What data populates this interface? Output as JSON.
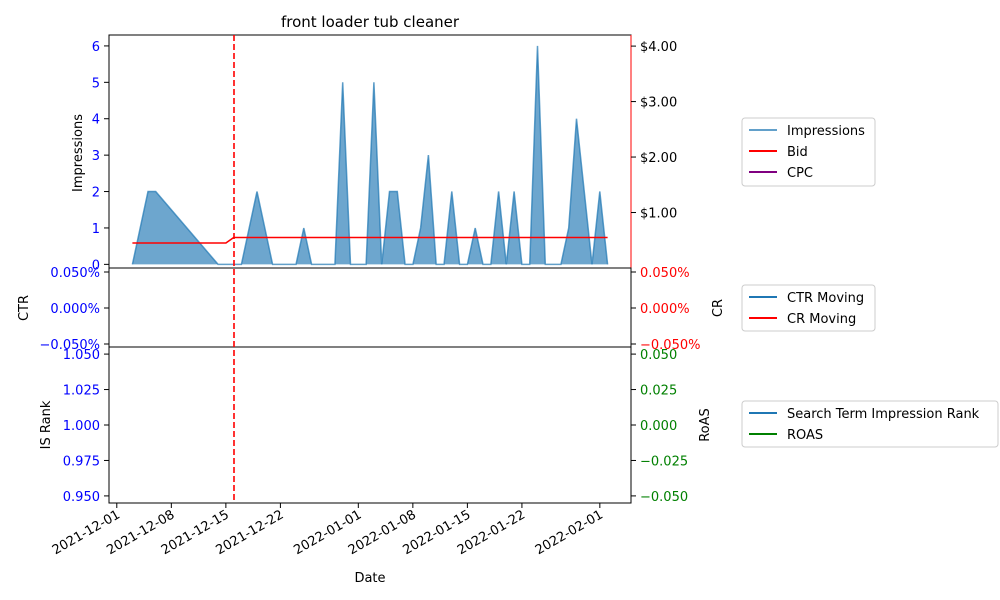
{
  "colors": {
    "impressions": "#1f77b4",
    "bid": "#ff0000",
    "cpc": "#800080",
    "ctr": "#1f77b4",
    "cr": "#ff0000",
    "rank": "#1f77b4",
    "roas": "#008000",
    "left_axis": "#0000ff",
    "right_axis_top": "#ff0000",
    "right_axis_bottom": "#008000",
    "vline": "#ff0000"
  },
  "chart_data": [
    {
      "type": "area",
      "title": "front loader tub cleaner",
      "ylabel": "Impressions",
      "ylim": [
        -0.1,
        6.3
      ],
      "y_ticks": [
        "0",
        "1",
        "2",
        "3",
        "4",
        "5",
        "6"
      ],
      "y_tick_values": [
        0,
        1,
        2,
        3,
        4,
        5,
        6
      ],
      "y2lim": [
        0.0,
        4.2
      ],
      "y2_ticks": [
        "$1.00",
        "$2.00",
        "$3.00",
        "$4.00"
      ],
      "y2_tick_values": [
        1,
        2,
        3,
        4
      ],
      "vline_date": "2021-12-16",
      "legend": [
        "Impressions",
        "Bid",
        "CPC"
      ],
      "series": [
        {
          "name": "Impressions",
          "type": "area",
          "x": [
            "2021-12-03",
            "2021-12-05",
            "2021-12-06",
            "2021-12-14",
            "2021-12-17",
            "2021-12-19",
            "2021-12-21",
            "2021-12-24",
            "2021-12-25",
            "2021-12-26",
            "2021-12-29",
            "2021-12-30",
            "2021-12-31",
            "2022-01-02",
            "2022-01-03",
            "2022-01-04",
            "2022-01-05",
            "2022-01-06",
            "2022-01-07",
            "2022-01-08",
            "2022-01-09",
            "2022-01-10",
            "2022-01-11",
            "2022-01-12",
            "2022-01-13",
            "2022-01-14",
            "2022-01-15",
            "2022-01-16",
            "2022-01-17",
            "2022-01-18",
            "2022-01-19",
            "2022-01-20",
            "2022-01-21",
            "2022-01-22",
            "2022-01-23",
            "2022-01-24",
            "2022-01-25",
            "2022-01-27",
            "2022-01-28",
            "2022-01-29",
            "2022-01-31",
            "2022-02-01",
            "2022-02-02"
          ],
          "values": [
            0,
            2,
            2,
            0,
            0,
            2,
            0,
            0,
            1,
            0,
            0,
            5,
            0,
            0,
            5,
            0,
            2,
            2,
            0,
            0,
            1,
            3,
            0,
            0,
            2,
            0,
            0,
            1,
            0,
            0,
            2,
            0,
            2,
            0,
            0,
            6,
            0,
            0,
            1,
            4,
            0,
            2,
            0
          ]
        },
        {
          "name": "Bid",
          "type": "line",
          "x": [
            "2021-12-03",
            "2021-12-15",
            "2021-12-16",
            "2022-02-02"
          ],
          "values": [
            0.45,
            0.45,
            0.55,
            0.55
          ]
        },
        {
          "name": "CPC",
          "type": "line",
          "x": [],
          "values": []
        }
      ]
    },
    {
      "type": "line",
      "ylabel": "CTR",
      "y2label": "CR",
      "y_ticks": [
        "0.050%",
        "0.000%",
        "−0.050%"
      ],
      "y2_ticks": [
        "0.050%",
        "0.000%",
        "−0.050%"
      ],
      "ylim": [
        -0.05,
        0.05
      ],
      "legend": [
        "CTR Moving",
        "CR Moving"
      ],
      "series": [
        {
          "name": "CTR Moving",
          "x": [],
          "values": []
        },
        {
          "name": "CR Moving",
          "x": [],
          "values": []
        }
      ]
    },
    {
      "type": "line",
      "xlabel": "Date",
      "ylabel": "IS Rank",
      "y2label": "RoAS",
      "ylim": [
        0.945,
        1.055
      ],
      "y_ticks": [
        "1.050",
        "1.025",
        "1.000",
        "0.975",
        "0.950"
      ],
      "y_tick_values": [
        1.05,
        1.025,
        1.0,
        0.975,
        0.95
      ],
      "y2lim": [
        -0.055,
        0.055
      ],
      "y2_ticks": [
        "0.050",
        "0.025",
        "0.000",
        "−0.025",
        "−0.050"
      ],
      "y2_tick_values": [
        0.05,
        0.025,
        0.0,
        -0.025,
        -0.05
      ],
      "x_range": [
        "2021-11-30",
        "2022-02-05"
      ],
      "x_ticks": [
        "2021-12-01",
        "2021-12-08",
        "2021-12-15",
        "2021-12-22",
        "2022-01-01",
        "2022-01-08",
        "2022-01-15",
        "2022-01-22",
        "2022-02-01"
      ],
      "legend": [
        "Search Term Impression Rank",
        "ROAS"
      ],
      "series": [
        {
          "name": "Search Term Impression Rank",
          "x": [],
          "values": []
        },
        {
          "name": "ROAS",
          "x": [],
          "values": []
        }
      ]
    }
  ]
}
